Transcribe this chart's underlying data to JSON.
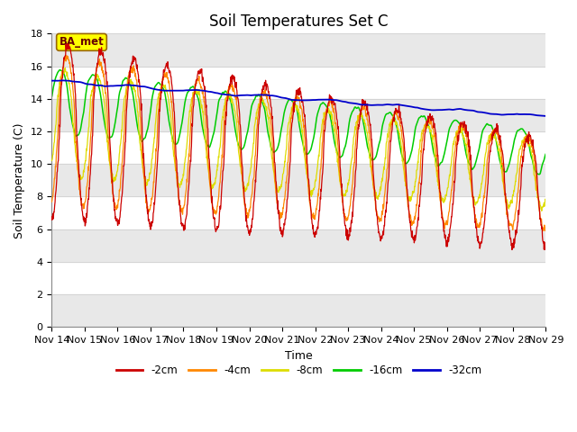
{
  "title": "Soil Temperatures Set C",
  "xlabel": "Time",
  "ylabel": "Soil Temperature (C)",
  "ylim": [
    0,
    18
  ],
  "yticks": [
    0,
    2,
    4,
    6,
    8,
    10,
    12,
    14,
    16,
    18
  ],
  "n_points": 1500,
  "days": 15,
  "xtick_labels": [
    "Nov 14",
    "Nov 15",
    "Nov 16",
    "Nov 17",
    "Nov 18",
    "Nov 19",
    "Nov 20",
    "Nov 21",
    "Nov 22",
    "Nov 23",
    "Nov 24",
    "Nov 25",
    "Nov 26",
    "Nov 27",
    "Nov 28",
    "Nov 29"
  ],
  "colors": {
    "-2cm": "#cc0000",
    "-4cm": "#ff8800",
    "-8cm": "#dddd00",
    "-16cm": "#00cc00",
    "-32cm": "#0000cc"
  },
  "annotation_text": "BA_met",
  "annotation_bg": "#ffff00",
  "annotation_border": "#996600",
  "bg_color": "#ffffff",
  "band_color": "#e8e8e8",
  "title_fontsize": 12,
  "label_fontsize": 9,
  "tick_fontsize": 8
}
